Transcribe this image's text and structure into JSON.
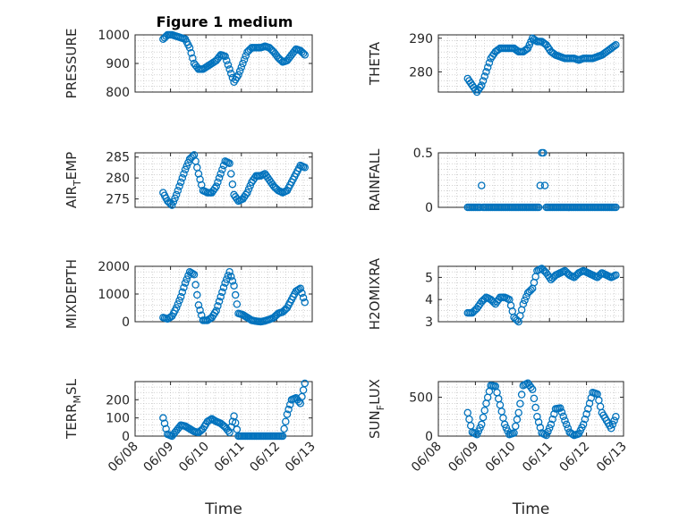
{
  "figure": {
    "title": "Figure 1 medium",
    "marker_color": "#0072BD",
    "axis_color": "#262626",
    "grid": "minor dotted"
  },
  "chart_data": [
    {
      "id": "pressure",
      "type": "scatter",
      "title": "Figure 1 medium",
      "ylabel": "PRESSURE",
      "ylabel_sub": "",
      "ylim": [
        800,
        1000
      ],
      "yticks": [
        "800",
        "900",
        "1000"
      ],
      "yticks_values": [
        800,
        900,
        1000
      ],
      "xlim": [
        "06/08",
        "06/13"
      ],
      "xticks": [
        "06/08",
        "06/09",
        "06/10",
        "06/11",
        "06/12",
        "06/13"
      ],
      "xlabel": "",
      "x": [
        "06/08 19:00",
        "06/08 22:00",
        "06/09 01:00",
        "06/09 04:00",
        "06/09 07:00",
        "06/09 10:00",
        "06/09 13:00",
        "06/09 16:00",
        "06/09 19:00",
        "06/09 22:00",
        "06/10 01:00",
        "06/10 04:00",
        "06/10 07:00",
        "06/10 10:00",
        "06/10 13:00",
        "06/10 16:00",
        "06/10 19:00",
        "06/10 22:00",
        "06/11 01:00",
        "06/11 04:00",
        "06/11 07:00",
        "06/11 10:00",
        "06/11 13:00",
        "06/11 16:00",
        "06/11 19:00",
        "06/11 22:00",
        "06/12 01:00",
        "06/12 04:00",
        "06/12 07:00",
        "06/12 10:00",
        "06/12 13:00",
        "06/12 16:00",
        "06/12 19:00"
      ],
      "y": [
        985,
        1000,
        1000,
        995,
        990,
        985,
        955,
        900,
        880,
        880,
        890,
        900,
        910,
        930,
        925,
        880,
        835,
        860,
        900,
        940,
        955,
        955,
        955,
        960,
        955,
        940,
        920,
        905,
        910,
        930,
        950,
        945,
        930
      ]
    },
    {
      "id": "theta",
      "type": "scatter",
      "ylabel": "THETA",
      "ylabel_sub": "",
      "ylim": [
        274,
        291
      ],
      "yticks": [
        "280",
        "290"
      ],
      "yticks_values": [
        280,
        290
      ],
      "xlim": [
        "06/08",
        "06/13"
      ],
      "xticks": [
        "06/08",
        "06/09",
        "06/10",
        "06/11",
        "06/12",
        "06/13"
      ],
      "xlabel": "",
      "x": [
        "06/08 19:00",
        "06/08 22:00",
        "06/09 01:00",
        "06/09 04:00",
        "06/09 07:00",
        "06/09 10:00",
        "06/09 13:00",
        "06/09 16:00",
        "06/09 19:00",
        "06/09 22:00",
        "06/10 01:00",
        "06/10 04:00",
        "06/10 07:00",
        "06/10 10:00",
        "06/10 13:00",
        "06/10 16:00",
        "06/10 19:00",
        "06/10 22:00",
        "06/11 01:00",
        "06/11 04:00",
        "06/11 07:00",
        "06/11 10:00",
        "06/11 13:00",
        "06/11 16:00",
        "06/11 19:00",
        "06/11 22:00",
        "06/12 01:00",
        "06/12 04:00",
        "06/12 07:00",
        "06/12 10:00",
        "06/12 13:00",
        "06/12 16:00",
        "06/12 19:00"
      ],
      "y": [
        278,
        276,
        274,
        276,
        280,
        284,
        286,
        287,
        287,
        287,
        287,
        286,
        286,
        287,
        290,
        289,
        289,
        288,
        286,
        285,
        284.5,
        284,
        284,
        284,
        283.5,
        284,
        284,
        284,
        284.5,
        285,
        286,
        287,
        288
      ]
    },
    {
      "id": "air_temp",
      "type": "scatter",
      "ylabel": "AIR",
      "ylabel_sub": "T",
      "ylabel_after": "EMP",
      "ylim": [
        273,
        286
      ],
      "yticks": [
        "275",
        "280",
        "285"
      ],
      "yticks_values": [
        275,
        280,
        285
      ],
      "xlim": [
        "06/08",
        "06/13"
      ],
      "xticks": [
        "06/08",
        "06/09",
        "06/10",
        "06/11",
        "06/12",
        "06/13"
      ],
      "xlabel": "",
      "x": [
        "06/08 19:00",
        "06/08 22:00",
        "06/09 01:00",
        "06/09 04:00",
        "06/09 07:00",
        "06/09 10:00",
        "06/09 13:00",
        "06/09 16:00",
        "06/09 19:00",
        "06/09 22:00",
        "06/10 01:00",
        "06/10 04:00",
        "06/10 07:00",
        "06/10 10:00",
        "06/10 13:00",
        "06/10 16:00",
        "06/10 19:00",
        "06/10 22:00",
        "06/11 01:00",
        "06/11 04:00",
        "06/11 07:00",
        "06/11 10:00",
        "06/11 13:00",
        "06/11 16:00",
        "06/11 19:00",
        "06/11 22:00",
        "06/12 01:00",
        "06/12 04:00",
        "06/12 07:00",
        "06/12 10:00",
        "06/12 13:00",
        "06/12 16:00",
        "06/12 19:00"
      ],
      "y": [
        276.5,
        274.5,
        273.5,
        276,
        279,
        282,
        284.5,
        285.5,
        281,
        277,
        276.5,
        276.5,
        278,
        281,
        284,
        283.5,
        276,
        274.5,
        275,
        276.5,
        279,
        280.5,
        280.5,
        281,
        279.5,
        278,
        277,
        276.5,
        277,
        279,
        281,
        283,
        282.5
      ]
    },
    {
      "id": "rainfall",
      "type": "scatter",
      "ylabel": "RAINFALL",
      "ylabel_sub": "",
      "ylim": [
        0,
        0.5
      ],
      "yticks": [
        "0",
        "0.5"
      ],
      "yticks_values": [
        0,
        0.5
      ],
      "xlim": [
        "06/08",
        "06/13"
      ],
      "xticks": [
        "06/08",
        "06/09",
        "06/10",
        "06/11",
        "06/12",
        "06/13"
      ],
      "xlabel": "",
      "x": [
        "06/08 19:00",
        "06/08 22:00",
        "06/09 01:00",
        "06/09 04:00",
        "06/09 07:00",
        "06/09 10:00",
        "06/09 13:00",
        "06/09 16:00",
        "06/09 19:00",
        "06/09 22:00",
        "06/10 01:00",
        "06/10 04:00",
        "06/10 07:00",
        "06/10 10:00",
        "06/10 13:00",
        "06/10 16:00",
        "06/10 18:00",
        "06/10 19:00",
        "06/10 20:00",
        "06/10 21:00",
        "06/10 22:00",
        "06/11 01:00",
        "06/11 04:00",
        "06/11 07:00",
        "06/11 10:00",
        "06/11 13:00",
        "06/11 16:00",
        "06/11 19:00",
        "06/11 22:00",
        "06/12 01:00",
        "06/12 04:00",
        "06/12 07:00",
        "06/12 10:00",
        "06/12 13:00",
        "06/12 16:00",
        "06/12 19:00"
      ],
      "y": [
        0,
        0,
        0,
        0.2,
        0,
        0,
        0,
        0,
        0,
        0,
        0,
        0,
        0,
        0,
        0,
        0,
        0.2,
        0.5,
        0.5,
        0.2,
        0,
        0,
        0,
        0,
        0,
        0,
        0,
        0,
        0,
        0,
        0,
        0,
        0,
        0,
        0,
        0
      ]
    },
    {
      "id": "mixdepth",
      "type": "scatter",
      "ylabel": "MIXDEPTH",
      "ylabel_sub": "",
      "ylim": [
        0,
        2000
      ],
      "yticks": [
        "0",
        "1000",
        "2000"
      ],
      "yticks_values": [
        0,
        1000,
        2000
      ],
      "xlim": [
        "06/08",
        "06/13"
      ],
      "xticks": [
        "06/08",
        "06/09",
        "06/10",
        "06/11",
        "06/12",
        "06/13"
      ],
      "xlabel": "",
      "x": [
        "06/08 19:00",
        "06/08 22:00",
        "06/09 01:00",
        "06/09 04:00",
        "06/09 07:00",
        "06/09 10:00",
        "06/09 13:00",
        "06/09 16:00",
        "06/09 19:00",
        "06/09 22:00",
        "06/10 01:00",
        "06/10 04:00",
        "06/10 07:00",
        "06/10 10:00",
        "06/10 13:00",
        "06/10 16:00",
        "06/10 19:00",
        "06/10 22:00",
        "06/11 01:00",
        "06/11 04:00",
        "06/11 07:00",
        "06/11 10:00",
        "06/11 13:00",
        "06/11 16:00",
        "06/11 19:00",
        "06/11 22:00",
        "06/12 01:00",
        "06/12 04:00",
        "06/12 07:00",
        "06/12 10:00",
        "06/12 13:00",
        "06/12 16:00",
        "06/12 19:00"
      ],
      "y": [
        150,
        100,
        200,
        500,
        900,
        1400,
        1800,
        1700,
        600,
        50,
        50,
        150,
        400,
        900,
        1400,
        1800,
        1300,
        300,
        250,
        150,
        50,
        20,
        0,
        30,
        80,
        150,
        300,
        350,
        500,
        800,
        1100,
        1200,
        700
      ]
    },
    {
      "id": "h2omixra",
      "type": "scatter",
      "ylabel": "H2OMIXRA",
      "ylabel_sub": "",
      "ylim": [
        3,
        5.5
      ],
      "yticks": [
        "3",
        "4",
        "5"
      ],
      "yticks_values": [
        3,
        4,
        5
      ],
      "xlim": [
        "06/08",
        "06/13"
      ],
      "xticks": [
        "06/08",
        "06/09",
        "06/10",
        "06/11",
        "06/12",
        "06/13"
      ],
      "xlabel": "",
      "x": [
        "06/08 19:00",
        "06/08 22:00",
        "06/09 01:00",
        "06/09 04:00",
        "06/09 07:00",
        "06/09 10:00",
        "06/09 13:00",
        "06/09 16:00",
        "06/09 19:00",
        "06/09 22:00",
        "06/10 01:00",
        "06/10 04:00",
        "06/10 07:00",
        "06/10 10:00",
        "06/10 13:00",
        "06/10 16:00",
        "06/10 19:00",
        "06/10 22:00",
        "06/11 01:00",
        "06/11 04:00",
        "06/11 07:00",
        "06/11 10:00",
        "06/11 13:00",
        "06/11 16:00",
        "06/11 19:00",
        "06/11 22:00",
        "06/12 01:00",
        "06/12 04:00",
        "06/12 07:00",
        "06/12 10:00",
        "06/12 13:00",
        "06/12 16:00",
        "06/12 19:00"
      ],
      "y": [
        3.4,
        3.4,
        3.6,
        3.9,
        4.1,
        4.0,
        3.8,
        4.1,
        4.1,
        4.0,
        3.2,
        3.0,
        3.8,
        4.3,
        4.5,
        5.3,
        5.4,
        5.2,
        4.9,
        5.1,
        5.2,
        5.3,
        5.1,
        5.0,
        5.2,
        5.3,
        5.2,
        5.1,
        5.0,
        5.2,
        5.1,
        5.0,
        5.1
      ]
    },
    {
      "id": "terr_msl",
      "type": "scatter",
      "ylabel": "TERR",
      "ylabel_sub": "M",
      "ylabel_after": "SL",
      "ylim": [
        0,
        300
      ],
      "yticks": [
        "0",
        "100",
        "200"
      ],
      "yticks_values": [
        0,
        100,
        200
      ],
      "xlim": [
        "06/08",
        "06/13"
      ],
      "xticks": [
        "06/08",
        "06/09",
        "06/10",
        "06/11",
        "06/12",
        "06/13"
      ],
      "xlabel": "Time",
      "x": [
        "06/08 19:00",
        "06/08 22:00",
        "06/09 01:00",
        "06/09 04:00",
        "06/09 07:00",
        "06/09 10:00",
        "06/09 13:00",
        "06/09 16:00",
        "06/09 19:00",
        "06/09 22:00",
        "06/10 01:00",
        "06/10 04:00",
        "06/10 07:00",
        "06/10 10:00",
        "06/10 13:00",
        "06/10 16:00",
        "06/10 19:00",
        "06/10 22:00",
        "06/11 01:00",
        "06/11 04:00",
        "06/11 07:00",
        "06/11 10:00",
        "06/11 13:00",
        "06/11 16:00",
        "06/11 19:00",
        "06/11 22:00",
        "06/12 01:00",
        "06/12 04:00",
        "06/12 07:00",
        "06/12 10:00",
        "06/12 13:00",
        "06/12 16:00",
        "06/12 19:00"
      ],
      "y": [
        100,
        10,
        0,
        30,
        60,
        55,
        40,
        25,
        20,
        40,
        80,
        95,
        80,
        70,
        50,
        20,
        110,
        0,
        0,
        0,
        0,
        0,
        0,
        0,
        0,
        0,
        0,
        0,
        120,
        200,
        210,
        180,
        290
      ]
    },
    {
      "id": "sun_flux",
      "type": "scatter",
      "ylabel": "SUN",
      "ylabel_sub": "F",
      "ylabel_after": "LUX",
      "ylim": [
        0,
        700
      ],
      "yticks": [
        "0",
        "500"
      ],
      "yticks_values": [
        0,
        500
      ],
      "xlim": [
        "06/08",
        "06/13"
      ],
      "xticks": [
        "06/08",
        "06/09",
        "06/10",
        "06/11",
        "06/12",
        "06/13"
      ],
      "xlabel": "Time",
      "x": [
        "06/08 19:00",
        "06/08 22:00",
        "06/09 01:00",
        "06/09 04:00",
        "06/09 07:00",
        "06/09 10:00",
        "06/09 13:00",
        "06/09 16:00",
        "06/09 19:00",
        "06/09 22:00",
        "06/10 01:00",
        "06/10 04:00",
        "06/10 07:00",
        "06/10 10:00",
        "06/10 13:00",
        "06/10 16:00",
        "06/10 19:00",
        "06/10 22:00",
        "06/11 01:00",
        "06/11 04:00",
        "06/11 07:00",
        "06/11 10:00",
        "06/11 13:00",
        "06/11 16:00",
        "06/11 19:00",
        "06/11 22:00",
        "06/12 01:00",
        "06/12 04:00",
        "06/12 07:00",
        "06/12 10:00",
        "06/12 13:00",
        "06/12 16:00",
        "06/12 19:00"
      ],
      "y": [
        300,
        50,
        20,
        150,
        420,
        650,
        640,
        400,
        150,
        20,
        40,
        300,
        650,
        680,
        600,
        250,
        40,
        10,
        150,
        350,
        360,
        200,
        50,
        10,
        30,
        150,
        350,
        560,
        540,
        300,
        200,
        100,
        250
      ]
    }
  ]
}
